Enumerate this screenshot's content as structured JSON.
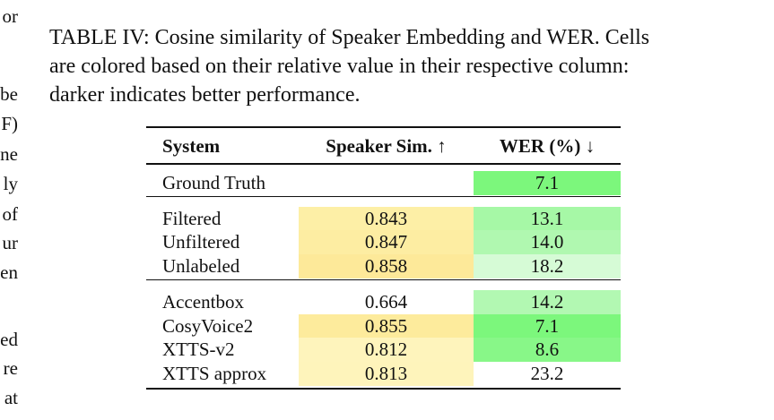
{
  "margin_fragments": [
    "or",
    "be",
    "F)",
    "ne",
    "ly",
    "of",
    "ur",
    "en",
    "ed",
    "re",
    "at"
  ],
  "caption": {
    "label": "TABLE IV:",
    "lines": [
      "Cosine similarity of Speaker Embedding and WER. Cells",
      "are colored based on their relative value in their respective column:",
      "darker indicates better performance."
    ]
  },
  "table": {
    "header": [
      "System",
      "Speaker Sim. ↑",
      "WER (%) ↓"
    ],
    "groups": [
      [
        {
          "cells": [
            "Ground Truth",
            "",
            "7.1"
          ],
          "colors": [
            null,
            null,
            "#7cf77c"
          ]
        }
      ],
      [
        {
          "cells": [
            "Filtered",
            "0.843",
            "13.1"
          ],
          "colors": [
            null,
            "#fdefa6",
            "#a6f8a6"
          ]
        },
        {
          "cells": [
            "Unfiltered",
            "0.847",
            "14.0"
          ],
          "colors": [
            null,
            "#fdeda2",
            "#b0f8b0"
          ]
        },
        {
          "cells": [
            "Unlabeled",
            "0.858",
            "18.2"
          ],
          "colors": [
            null,
            "#fde999",
            "#d6fbd6"
          ]
        }
      ],
      [
        {
          "cells": [
            "Accentbox",
            "0.664",
            "14.2"
          ],
          "colors": [
            null,
            null,
            "#b2f8b2"
          ]
        },
        {
          "cells": [
            "CosyVoice2",
            "0.855",
            "7.1"
          ],
          "colors": [
            null,
            "#fdeb9c",
            "#7cf77c"
          ]
        },
        {
          "cells": [
            "XTTS-v2",
            "0.812",
            "8.6"
          ],
          "colors": [
            null,
            "#fef4bc",
            "#88f788"
          ]
        },
        {
          "cells": [
            "XTTS approx",
            "0.813",
            "23.2"
          ],
          "colors": [
            null,
            "#fef4bb",
            null
          ]
        }
      ]
    ]
  }
}
